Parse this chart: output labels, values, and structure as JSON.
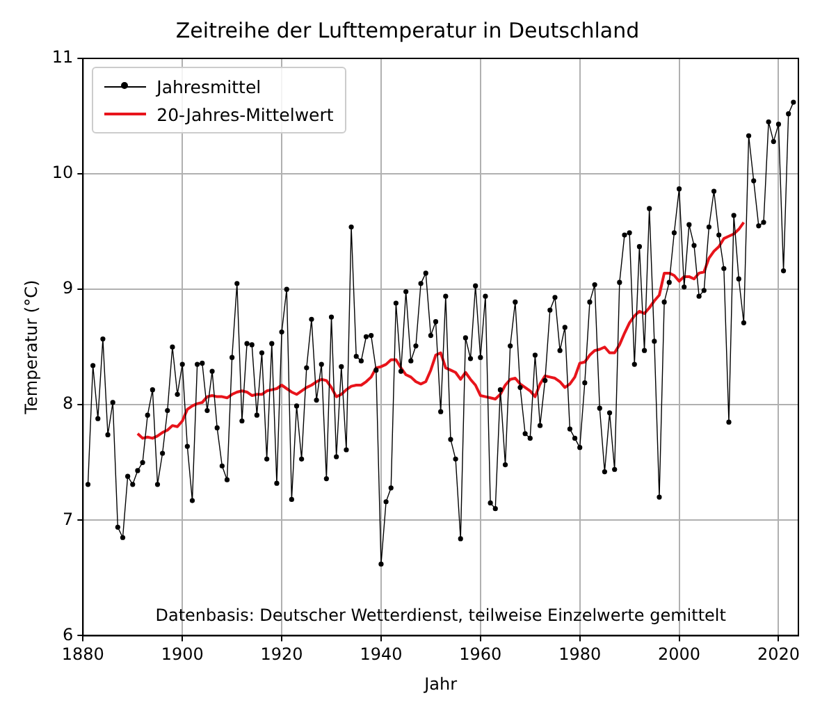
{
  "chart_data": {
    "type": "line",
    "title": "Zeitreihe der Lufttemperatur in Deutschland",
    "xlabel": "Jahr",
    "ylabel": "Temperatur (°C)",
    "xlim": [
      1880,
      2024
    ],
    "xticks": [
      1880,
      1900,
      1920,
      1940,
      1960,
      1980,
      2000,
      2020
    ],
    "ylim": [
      6,
      11
    ],
    "yticks": [
      6,
      7,
      8,
      9,
      10,
      11
    ],
    "grid": true,
    "legend": "top left",
    "annotations": [
      "Datenbasis: Deutscher Wetterdienst, teilweise Einzelwerte gemittelt"
    ],
    "series": [
      {
        "name": "Jahresmittel",
        "color": "#000000",
        "marker": "circle",
        "x": [
          1881,
          1882,
          1883,
          1884,
          1885,
          1886,
          1887,
          1888,
          1889,
          1890,
          1891,
          1892,
          1893,
          1894,
          1895,
          1896,
          1897,
          1898,
          1899,
          1900,
          1901,
          1902,
          1903,
          1904,
          1905,
          1906,
          1907,
          1908,
          1909,
          1910,
          1911,
          1912,
          1913,
          1914,
          1915,
          1916,
          1917,
          1918,
          1919,
          1920,
          1921,
          1922,
          1923,
          1924,
          1925,
          1926,
          1927,
          1928,
          1929,
          1930,
          1931,
          1932,
          1933,
          1934,
          1935,
          1936,
          1937,
          1938,
          1939,
          1940,
          1941,
          1942,
          1943,
          1944,
          1945,
          1946,
          1947,
          1948,
          1949,
          1950,
          1951,
          1952,
          1953,
          1954,
          1955,
          1956,
          1957,
          1958,
          1959,
          1960,
          1961,
          1962,
          1963,
          1964,
          1965,
          1966,
          1967,
          1968,
          1969,
          1970,
          1971,
          1972,
          1973,
          1974,
          1975,
          1976,
          1977,
          1978,
          1979,
          1980,
          1981,
          1982,
          1983,
          1984,
          1985,
          1986,
          1987,
          1988,
          1989,
          1990,
          1991,
          1992,
          1993,
          1994,
          1995,
          1996,
          1997,
          1998,
          1999,
          2000,
          2001,
          2002,
          2003,
          2004,
          2005,
          2006,
          2007,
          2008,
          2009,
          2010,
          2011,
          2012,
          2013,
          2014,
          2015,
          2016,
          2017,
          2018,
          2019,
          2020,
          2021,
          2022,
          2023
        ],
        "values": [
          7.31,
          8.34,
          7.88,
          8.57,
          7.74,
          8.02,
          6.94,
          6.85,
          7.38,
          7.31,
          7.43,
          7.5,
          7.91,
          8.13,
          7.31,
          7.58,
          7.95,
          8.5,
          8.09,
          8.35,
          7.64,
          7.17,
          8.35,
          8.36,
          7.95,
          8.29,
          7.8,
          7.47,
          7.35,
          8.41,
          9.05,
          7.86,
          8.53,
          8.52,
          7.91,
          8.45,
          7.53,
          8.53,
          7.32,
          8.63,
          9.0,
          7.18,
          7.99,
          7.53,
          8.32,
          8.74,
          8.04,
          8.35,
          7.36,
          8.76,
          7.55,
          8.33,
          7.61,
          9.54,
          8.42,
          8.38,
          8.59,
          8.6,
          8.3,
          6.62,
          7.16,
          7.28,
          8.88,
          8.29,
          8.98,
          8.38,
          8.51,
          9.05,
          9.14,
          8.6,
          8.72,
          7.94,
          8.94,
          7.7,
          7.53,
          6.84,
          8.58,
          8.4,
          9.03,
          8.41,
          8.94,
          7.15,
          7.1,
          8.13,
          7.48,
          8.51,
          8.89,
          8.15,
          7.75,
          7.71,
          8.43,
          7.82,
          8.21,
          8.82,
          8.93,
          8.47,
          8.67,
          7.79,
          7.71,
          7.63,
          8.19,
          8.89,
          9.04,
          7.97,
          7.42,
          7.93,
          7.44,
          9.06,
          9.47,
          9.49,
          8.35,
          9.37,
          8.47,
          9.7,
          8.55,
          7.2,
          8.89,
          9.06,
          9.49,
          9.87,
          9.02,
          9.56,
          9.38,
          8.94,
          8.99,
          9.54,
          9.85,
          9.47,
          9.18,
          7.85,
          9.64,
          9.09,
          8.71,
          10.33,
          9.94,
          9.55,
          9.58,
          10.45,
          10.28,
          10.43,
          9.16,
          10.52,
          10.62
        ]
      },
      {
        "name": "20-Jahres-Mittelwert",
        "color": "#e8141b",
        "marker": "none",
        "x": [
          1891,
          1892,
          1893,
          1894,
          1895,
          1896,
          1897,
          1898,
          1899,
          1900,
          1901,
          1902,
          1903,
          1904,
          1905,
          1906,
          1907,
          1908,
          1909,
          1910,
          1911,
          1912,
          1913,
          1914,
          1915,
          1916,
          1917,
          1918,
          1919,
          1920,
          1921,
          1922,
          1923,
          1924,
          1925,
          1926,
          1927,
          1928,
          1929,
          1930,
          1931,
          1932,
          1933,
          1934,
          1935,
          1936,
          1937,
          1938,
          1939,
          1940,
          1941,
          1942,
          1943,
          1944,
          1945,
          1946,
          1947,
          1948,
          1949,
          1950,
          1951,
          1952,
          1953,
          1954,
          1955,
          1956,
          1957,
          1958,
          1959,
          1960,
          1961,
          1962,
          1963,
          1964,
          1965,
          1966,
          1967,
          1968,
          1969,
          1970,
          1971,
          1972,
          1973,
          1974,
          1975,
          1976,
          1977,
          1978,
          1979,
          1980,
          1981,
          1982,
          1983,
          1984,
          1985,
          1986,
          1987,
          1988,
          1989,
          1990,
          1991,
          1992,
          1993,
          1994,
          1995,
          1996,
          1997,
          1998,
          1999,
          2000,
          2001,
          2002,
          2003,
          2004,
          2005,
          2006,
          2007,
          2008,
          2009,
          2010,
          2011,
          2012,
          2013
        ],
        "values": [
          7.75,
          7.71,
          7.72,
          7.71,
          7.73,
          7.76,
          7.78,
          7.82,
          7.81,
          7.86,
          7.96,
          7.99,
          8.01,
          8.02,
          8.07,
          8.08,
          8.07,
          8.07,
          8.06,
          8.09,
          8.11,
          8.12,
          8.11,
          8.08,
          8.09,
          8.09,
          8.12,
          8.13,
          8.14,
          8.17,
          8.14,
          8.11,
          8.09,
          8.12,
          8.15,
          8.17,
          8.2,
          8.22,
          8.21,
          8.15,
          8.07,
          8.09,
          8.13,
          8.16,
          8.17,
          8.17,
          8.2,
          8.24,
          8.32,
          8.33,
          8.35,
          8.39,
          8.39,
          8.32,
          8.26,
          8.24,
          8.2,
          8.18,
          8.2,
          8.3,
          8.43,
          8.45,
          8.32,
          8.3,
          8.28,
          8.22,
          8.28,
          8.22,
          8.17,
          8.08,
          8.07,
          8.06,
          8.05,
          8.09,
          8.17,
          8.22,
          8.23,
          8.18,
          8.15,
          8.12,
          8.07,
          8.18,
          8.25,
          8.24,
          8.23,
          8.2,
          8.15,
          8.18,
          8.24,
          8.36,
          8.37,
          8.43,
          8.47,
          8.48,
          8.5,
          8.45,
          8.45,
          8.52,
          8.62,
          8.71,
          8.77,
          8.81,
          8.79,
          8.84,
          8.9,
          8.95,
          9.14,
          9.14,
          9.12,
          9.07,
          9.11,
          9.11,
          9.09,
          9.14,
          9.15,
          9.27,
          9.33,
          9.37,
          9.44,
          9.46,
          9.48,
          9.52,
          9.58
        ]
      }
    ]
  }
}
